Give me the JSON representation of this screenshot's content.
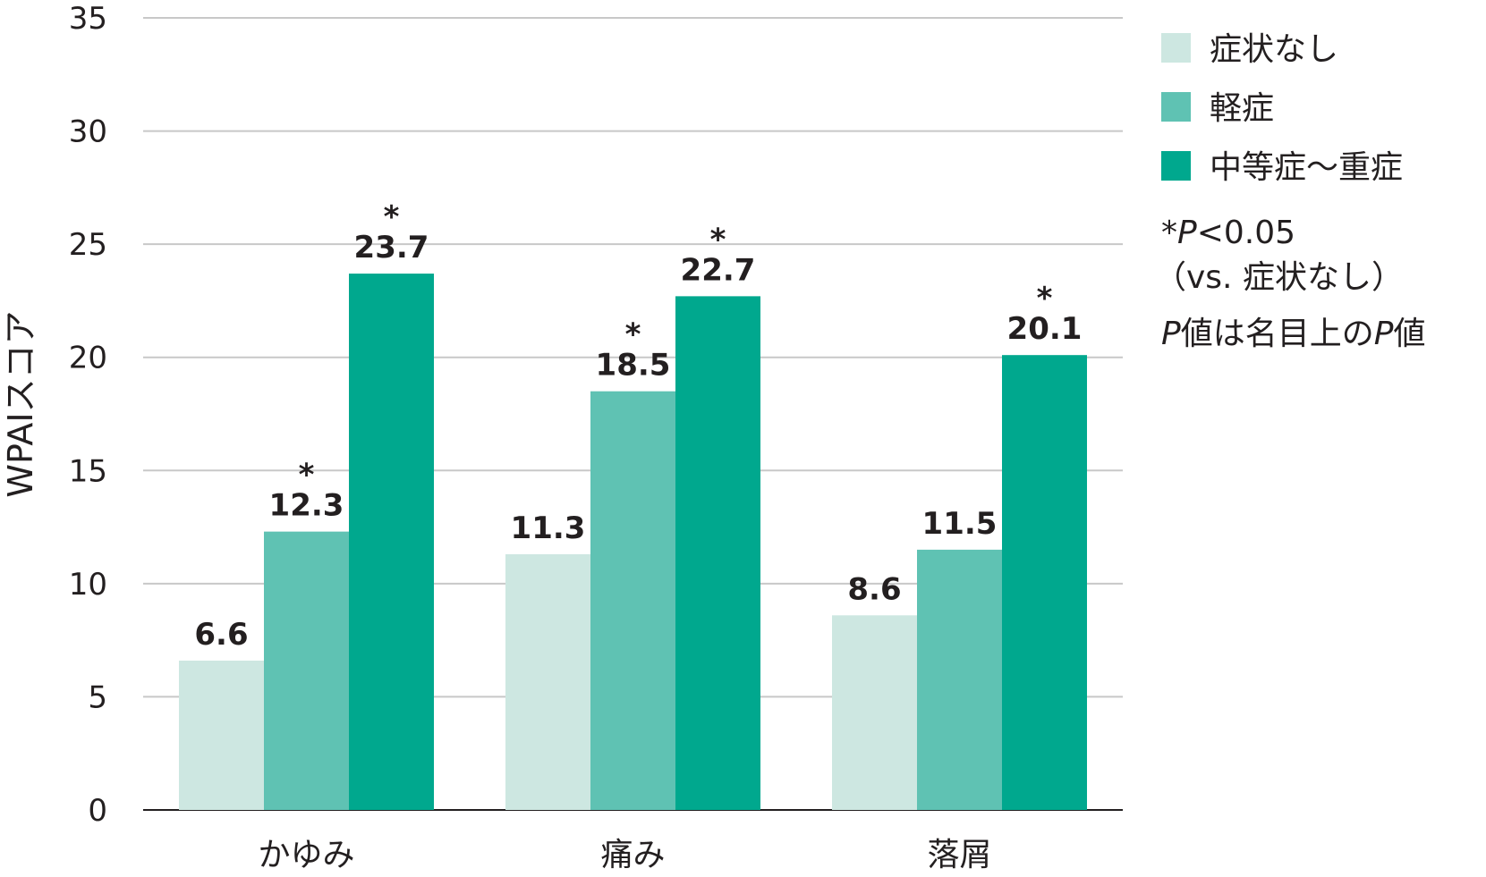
{
  "chart_data": {
    "type": "bar",
    "title": "",
    "xlabel": "",
    "ylabel": "WPAIスコア",
    "ylim": [
      0,
      35
    ],
    "yticks": [
      0,
      5,
      10,
      15,
      20,
      25,
      30,
      35
    ],
    "grid": true,
    "legend_position": "right",
    "categories": [
      "かゆみ",
      "痛み",
      "落屑"
    ],
    "series": [
      {
        "name": "症状なし",
        "color": "#cde7e1",
        "values": [
          6.6,
          11.3,
          8.6
        ],
        "labels": [
          "6.6",
          "11.3",
          "8.6"
        ],
        "significant": [
          false,
          false,
          false
        ]
      },
      {
        "name": "軽症",
        "color": "#5fc2b3",
        "values": [
          12.3,
          18.5,
          11.5
        ],
        "labels": [
          "12.3",
          "18.5",
          "11.5"
        ],
        "significant": [
          true,
          true,
          false
        ]
      },
      {
        "name": "中等症〜重症",
        "color": "#00a88e",
        "values": [
          23.7,
          22.7,
          20.1
        ],
        "labels": [
          "23.7",
          "22.7",
          "20.1"
        ],
        "significant": [
          true,
          true,
          true
        ]
      }
    ],
    "significance_marker": "*",
    "notes": {
      "line1_star": "*",
      "line1_p": "P",
      "line1_rest": "<0.05",
      "line2": "（vs. 症状なし）",
      "line3_p1": "P",
      "line3_mid": "値は名目上の",
      "line3_p2": "P",
      "line3_end": "値"
    }
  }
}
